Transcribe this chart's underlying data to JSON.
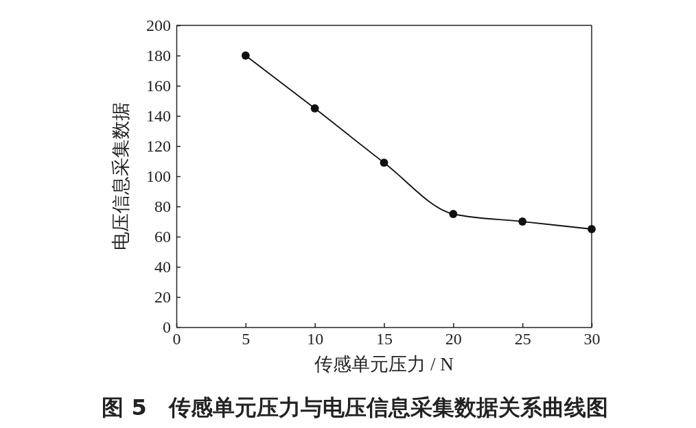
{
  "chart_data": {
    "type": "line",
    "title": "图 5　传感单元压力与电压信息采集数据关系曲线图",
    "xlabel": "传感单元压力 / N",
    "ylabel": "电压信息采集数据",
    "x": [
      5,
      10,
      15,
      20,
      25,
      30
    ],
    "series": [
      {
        "color": "#111111",
        "values": [
          180,
          145,
          109,
          75,
          70,
          65
        ]
      }
    ],
    "xlim": [
      0,
      30
    ],
    "xticks": [
      0,
      5,
      10,
      15,
      20,
      25,
      30
    ],
    "ylim": [
      0,
      200
    ],
    "yticks": [
      0,
      20,
      40,
      60,
      80,
      100,
      120,
      140,
      160,
      180,
      200
    ],
    "marker": "circle",
    "line_style": "solid"
  }
}
